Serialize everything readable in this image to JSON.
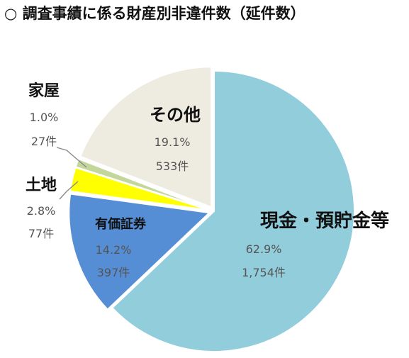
{
  "chart_data": {
    "type": "pie",
    "title": "○ 調査事績に係る財産別非違件数（延件数）",
    "slices": [
      {
        "name": "現金・預貯金等",
        "percent_label": "62.9%",
        "count_label": "1,754件",
        "value": 1754,
        "color": "#92CDDC"
      },
      {
        "name": "有価証券",
        "percent_label": "14.2%",
        "count_label": "397件",
        "value": 397,
        "color": "#558ED5"
      },
      {
        "name": "土地",
        "percent_label": "2.8%",
        "count_label": "77件",
        "value": 77,
        "color": "#FFFF00"
      },
      {
        "name": "家屋",
        "percent_label": "1.0%",
        "count_label": "27件",
        "value": 27,
        "color": "#C4D79B"
      },
      {
        "name": "その他",
        "percent_label": "19.1%",
        "count_label": "533件",
        "value": 533,
        "color": "#EEECE1"
      }
    ]
  }
}
